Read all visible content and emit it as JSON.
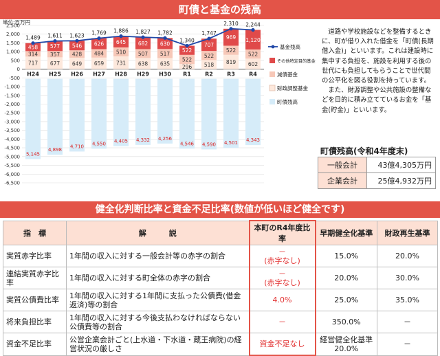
{
  "banner_top": "町債と基金の残高",
  "banner_bottom": "健全化判断比率と資金不足比率(数値が低いほど健全です)",
  "chart_data": {
    "type": "bar",
    "ylabel": "単位:百万円",
    "ylim": [
      -6500,
      2500
    ],
    "yticks": [
      2500,
      2000,
      1500,
      1000,
      500,
      0,
      -500,
      -1000,
      -1500,
      -2000,
      -2500,
      -3000,
      -3500,
      -4000,
      -4500,
      -5000,
      -5500,
      -6000,
      -6500
    ],
    "categories": [
      "H24",
      "H25",
      "H26",
      "H27",
      "H28",
      "H29",
      "H30",
      "R1",
      "R2",
      "R3",
      "R4"
    ],
    "series": [
      {
        "name": "その他特定目的基金",
        "values": [
          458,
          577,
          546,
          626,
          645,
          682,
          630,
          522,
          707,
          969,
          1120
        ],
        "color": "#e04a4a"
      },
      {
        "name": "減債基金",
        "values": [
          314,
          357,
          428,
          484,
          510,
          507,
          517,
          522,
          522,
          522,
          522
        ],
        "color": "#f7c8b8"
      },
      {
        "name": "財政調整基金",
        "values": [
          717,
          677,
          649,
          659,
          731,
          638,
          635,
          296,
          518,
          819,
          602
        ],
        "color": "#fde8dc"
      },
      {
        "name": "町債残高",
        "values": [
          -5145,
          -4898,
          -4710,
          -4550,
          -4405,
          -4332,
          -4256,
          -4546,
          -4590,
          -4501,
          -4343
        ],
        "color": "#d6ecf9"
      }
    ],
    "line": {
      "name": "基金残高",
      "values": [
        1489,
        1611,
        1623,
        1769,
        1886,
        1827,
        1782,
        1340,
        1747,
        2310,
        2244
      ],
      "color": "#2048a8"
    },
    "debt_labels": [
      "5,145",
      "4,898",
      "4,710",
      "4,550",
      "4,405",
      "4,332",
      "4,256",
      "4,546",
      "4,590",
      "4,501",
      "4,343"
    ],
    "legend_position": "right"
  },
  "description": [
    "道路や学校施設などを整備するときに、町が借り入れた借金を「町債(長期借入金)」といいます。これは建設時に集中する負担を、施設を利用する後の世代にも負担してもらうことで世代間の公平化を図る役割を持っています。",
    "また、財源調整や公共施設の整備などを目的に積み立てているお金を「基金(貯金)」といいます。"
  ],
  "balance": {
    "title": "町債残高(令和4年度末)",
    "rows": [
      {
        "label": "一般会計",
        "value": "43億4,305万円"
      },
      {
        "label": "企業会計",
        "value": "25億4,932万円"
      }
    ]
  },
  "ratio_table": {
    "headers": [
      "指　標",
      "解　　　説",
      "本町のR4年度比率",
      "早期健全化基準",
      "財政再生基準"
    ],
    "rows": [
      {
        "name": "実質赤字比率",
        "desc": "1年間の収入に対する一般会計等の赤字の割合",
        "town": "－",
        "town2": "(赤字なし)",
        "early": "15.0%",
        "early2": "",
        "rebuild": "20.0%"
      },
      {
        "name": "連結実質赤字比率",
        "desc": "1年間の収入に対する町全体の赤字の割合",
        "town": "－",
        "town2": "(赤字なし)",
        "early": "20.0%",
        "early2": "",
        "rebuild": "30.0%"
      },
      {
        "name": "実質公債費比率",
        "desc": "1年間の収入に対する1年間に支払った公債費(借金返済)等の割合",
        "town": "4.0%",
        "town2": "",
        "early": "25.0%",
        "early2": "",
        "rebuild": "35.0%"
      },
      {
        "name": "将来負担比率",
        "desc": "1年間の収入に対する今後支払わなければならない公債費等の割合",
        "town": "－",
        "town2": "",
        "early": "350.0%",
        "early2": "",
        "rebuild": "－"
      },
      {
        "name": "資金不足比率",
        "desc": "公営企業会計ごと(上水道・下水道・蔵王病院)の経営状況の厳しさ",
        "town": "資金不足なし",
        "town2": "",
        "early": "経営健全化基準",
        "early2": "20.0%",
        "rebuild": "－"
      }
    ]
  }
}
